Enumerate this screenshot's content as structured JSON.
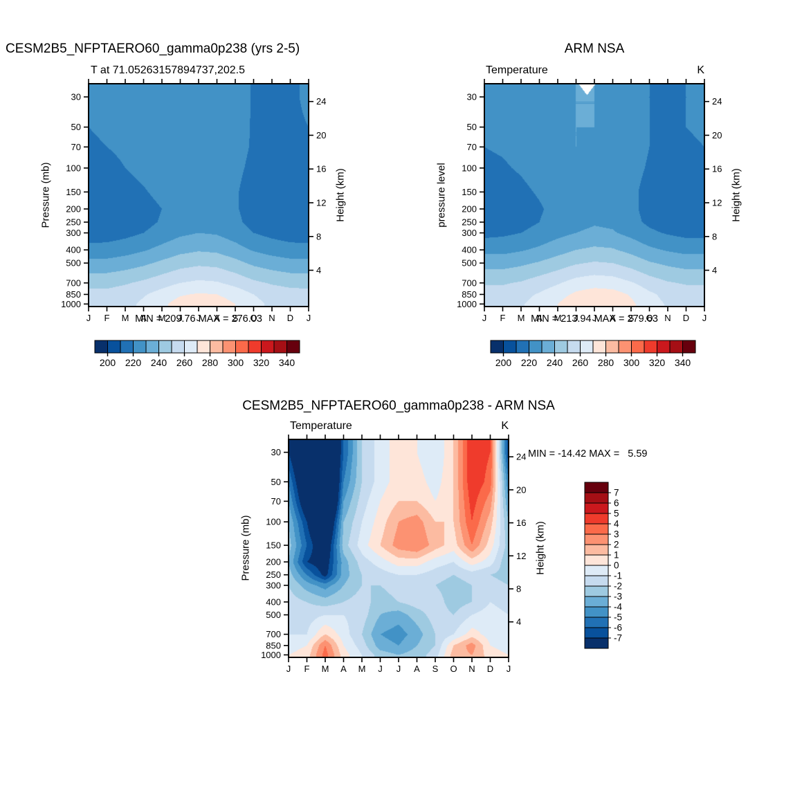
{
  "page": {
    "background": "#ffffff"
  },
  "months": [
    "J",
    "F",
    "M",
    "A",
    "M",
    "J",
    "J",
    "A",
    "S",
    "O",
    "N",
    "D",
    "J"
  ],
  "pressure_ticks": [
    "30",
    "50",
    "70",
    "100",
    "150",
    "200",
    "250",
    "300",
    "400",
    "500",
    "700",
    "850",
    "1000"
  ],
  "height_ticks": [
    "24",
    "20",
    "16",
    "12",
    "8",
    "4"
  ],
  "temperature_colorbar": {
    "start_value": 190,
    "step": 10,
    "labels": [
      "200",
      "220",
      "240",
      "260",
      "280",
      "300",
      "320",
      "340"
    ],
    "colors": [
      "#08306b",
      "#08519c",
      "#2171b5",
      "#4292c6",
      "#6baed6",
      "#9ecae1",
      "#c6dbef",
      "#deebf7",
      "#fee5d9",
      "#fcbba1",
      "#fc9272",
      "#fb6a4a",
      "#ef3b2c",
      "#cb181d",
      "#a50f15",
      "#67000d"
    ]
  },
  "difference_colorbar": {
    "labels_top_to_bottom": [
      "7",
      "6",
      "5",
      "4",
      "3",
      "2",
      "1",
      "0",
      "-1",
      "-2",
      "-3",
      "-4",
      "-5",
      "-6",
      "-7"
    ],
    "colors_neg_to_pos": [
      "#08306b",
      "#08519c",
      "#2171b5",
      "#4292c6",
      "#6baed6",
      "#9ecae1",
      "#c6dbef",
      "#deebf7",
      "#fee5d9",
      "#fcbba1",
      "#fc9272",
      "#fb6a4a",
      "#ef3b2c",
      "#cb181d",
      "#a50f15",
      "#67000d"
    ]
  },
  "panels": [
    {
      "id": "model",
      "title": "CESM2B5_NFPTAERO60_gamma0p238 (yrs 2-5)",
      "subtitle_left": "T at 71.05263157894737,202.5",
      "subtitle_right": "",
      "ylabel": "Pressure (mb)",
      "ylabel_right": "Height (km)",
      "stats": "MIN = 209.76 MAX = 276.03",
      "scale": "temperature"
    },
    {
      "id": "obs",
      "title": "ARM NSA",
      "subtitle_left": "Temperature",
      "subtitle_right": "K",
      "ylabel": "pressure level",
      "ylabel_right": "Height (km)",
      "stats": "MIN = 213.94 MAX = 279.63",
      "scale": "temperature"
    },
    {
      "id": "diff",
      "title": "CESM2B5_NFPTAERO60_gamma0p238 - ARM NSA",
      "subtitle_left": "Temperature",
      "subtitle_right": "K",
      "ylabel": "Pressure (mb)",
      "ylabel_right": "Height (km)",
      "stats": "MIN = -14.42 MAX =   5.59",
      "scale": "difference"
    }
  ],
  "chart_data": [
    {
      "type": "heatmap",
      "panel": "model",
      "title": "CESM2B5_NFPTAERO60_gamma0p238 (yrs 2-5)",
      "subtitle": "T at 71.05263157894737,202.5",
      "units": "K",
      "xlabel": "month",
      "ylabel": "Pressure (mb)",
      "ylabel_right": "Height (km)",
      "min": 209.76,
      "max": 276.03,
      "contour_interval": 10,
      "level_range": [
        190,
        350
      ],
      "x_months": [
        "J",
        "F",
        "M",
        "A",
        "M",
        "J",
        "J",
        "A",
        "S",
        "O",
        "N",
        "D",
        "J"
      ],
      "y_pressures_mb": [
        30,
        50,
        70,
        100,
        150,
        200,
        250,
        300,
        400,
        500,
        700,
        850,
        1000
      ],
      "values_K": [
        [
          221,
          222,
          224,
          226,
          228,
          229,
          229,
          228,
          225,
          219,
          218,
          219,
          221
        ],
        [
          220,
          221,
          223,
          226,
          228,
          229,
          229,
          228,
          224,
          219,
          218,
          219,
          220
        ],
        [
          219,
          220,
          222,
          225,
          228,
          229,
          228,
          227,
          223,
          219,
          218,
          218,
          219
        ],
        [
          216,
          217,
          220,
          223,
          226,
          228,
          227,
          226,
          222,
          218,
          216,
          216,
          216
        ],
        [
          212,
          213,
          216,
          219,
          223,
          226,
          226,
          225,
          221,
          216,
          214,
          213,
          212
        ],
        [
          210,
          210,
          212,
          216,
          220,
          224,
          225,
          224,
          221,
          216,
          213,
          211,
          210
        ],
        [
          211,
          211,
          213,
          217,
          221,
          225,
          227,
          226,
          222,
          217,
          214,
          212,
          211
        ],
        [
          214,
          215,
          217,
          220,
          224,
          228,
          230,
          229,
          225,
          220,
          217,
          215,
          214
        ],
        [
          224,
          224,
          226,
          229,
          233,
          237,
          239,
          238,
          234,
          229,
          226,
          224,
          224
        ],
        [
          233,
          233,
          235,
          238,
          242,
          246,
          248,
          247,
          243,
          238,
          235,
          233,
          233
        ],
        [
          247,
          247,
          249,
          252,
          256,
          260,
          262,
          261,
          257,
          252,
          249,
          247,
          247
        ],
        [
          253,
          253,
          255,
          259,
          264,
          269,
          271,
          270,
          266,
          260,
          256,
          254,
          253
        ],
        [
          255,
          255,
          257,
          262,
          268,
          274,
          276,
          275,
          270,
          263,
          258,
          256,
          255
        ]
      ]
    },
    {
      "type": "heatmap",
      "panel": "obs",
      "title": "ARM NSA",
      "subtitle": "Temperature",
      "units": "K",
      "xlabel": "month",
      "ylabel": "pressure level",
      "ylabel_right": "Height (km)",
      "min": 213.94,
      "max": 279.63,
      "contour_interval": 10,
      "level_range": [
        190,
        350
      ],
      "x_months": [
        "J",
        "F",
        "M",
        "A",
        "M",
        "J",
        "J",
        "A",
        "S",
        "O",
        "N",
        "D",
        "J"
      ],
      "y_pressures_mb": [
        30,
        50,
        70,
        100,
        150,
        200,
        250,
        300,
        400,
        500,
        700,
        850,
        1000
      ],
      "data_gap": {
        "month_center": 5.6,
        "month_halfwidth": 0.45,
        "depth_fraction": 0.05
      },
      "values_K": [
        [
          222,
          223,
          225,
          227,
          229,
          230,
          230,
          229,
          226,
          220,
          218,
          220,
          222
        ],
        [
          221,
          222,
          224,
          227,
          229,
          230,
          230,
          229,
          225,
          220,
          218,
          220,
          221
        ],
        [
          220,
          221,
          223,
          226,
          229,
          230,
          229,
          228,
          224,
          220,
          218,
          219,
          220
        ],
        [
          218,
          219,
          221,
          224,
          227,
          229,
          228,
          227,
          223,
          219,
          217,
          217,
          218
        ],
        [
          215,
          216,
          218,
          221,
          225,
          228,
          228,
          227,
          222,
          217,
          215,
          214,
          215
        ],
        [
          214,
          214,
          216,
          219,
          223,
          226,
          227,
          226,
          222,
          217,
          215,
          214,
          214
        ],
        [
          215,
          215,
          217,
          220,
          224,
          227,
          229,
          228,
          223,
          218,
          215,
          214,
          215
        ],
        [
          217,
          218,
          220,
          223,
          227,
          230,
          232,
          231,
          227,
          222,
          219,
          217,
          217
        ],
        [
          227,
          227,
          229,
          232,
          236,
          240,
          242,
          241,
          237,
          232,
          229,
          227,
          227
        ],
        [
          236,
          236,
          238,
          241,
          245,
          249,
          251,
          250,
          246,
          241,
          238,
          236,
          236
        ],
        [
          249,
          249,
          251,
          255,
          259,
          264,
          266,
          265,
          261,
          255,
          251,
          249,
          249
        ],
        [
          254,
          254,
          257,
          261,
          266,
          272,
          275,
          274,
          269,
          262,
          257,
          255,
          254
        ],
        [
          256,
          256,
          259,
          264,
          270,
          277,
          279,
          278,
          272,
          264,
          259,
          257,
          256
        ]
      ]
    },
    {
      "type": "heatmap",
      "panel": "diff",
      "title": "CESM2B5_NFPTAERO60_gamma0p238 - ARM NSA",
      "subtitle": "Temperature",
      "units": "K",
      "xlabel": "month",
      "ylabel": "Pressure (mb)",
      "ylabel_right": "Height (km)",
      "min": -14.42,
      "max": 5.59,
      "contour_interval": 1,
      "level_range": [
        -8,
        8
      ],
      "x_months": [
        "J",
        "F",
        "M",
        "A",
        "M",
        "J",
        "J",
        "A",
        "S",
        "O",
        "N",
        "D",
        "J"
      ],
      "y_pressures_mb": [
        30,
        50,
        70,
        100,
        150,
        200,
        250,
        300,
        400,
        500,
        700,
        850,
        1000
      ],
      "values_K": [
        [
          -7,
          -11,
          -13,
          -6,
          -2,
          -0.5,
          0.5,
          0,
          -1,
          1,
          5,
          4,
          -7
        ],
        [
          -5,
          -10,
          -14,
          -5,
          -2,
          -0.5,
          0.5,
          0.5,
          -0.5,
          1,
          5,
          3.5,
          -5
        ],
        [
          -4,
          -9,
          -14,
          -4,
          -1.5,
          0,
          1,
          1,
          0,
          1,
          4.5,
          2.5,
          -4
        ],
        [
          -3,
          -7,
          -11,
          -3,
          -1,
          0.5,
          2,
          2.5,
          1,
          1,
          4,
          1.5,
          -3
        ],
        [
          -2.5,
          -6,
          -9,
          -2.5,
          -0.5,
          1,
          2.5,
          3,
          1.5,
          0.5,
          3,
          0.5,
          -2.5
        ],
        [
          -3,
          -7,
          -8,
          -3.5,
          -1.5,
          -0.5,
          0.5,
          0.5,
          -0.5,
          -1,
          0.5,
          -0.5,
          -3
        ],
        [
          -2.5,
          -5,
          -7.5,
          -3.5,
          -2,
          -1.5,
          -1,
          -1,
          -1.5,
          -2,
          -1.5,
          -2,
          -2.5
        ],
        [
          -2,
          -3.5,
          -4.5,
          -3,
          -2,
          -2,
          -1.5,
          -1.5,
          -2,
          -2.5,
          -2,
          -1.5,
          -2
        ],
        [
          -1.5,
          -2,
          -2.5,
          -2,
          -1.5,
          -2.5,
          -2,
          -1.5,
          -1.5,
          -2.5,
          -2,
          -1,
          -1.5
        ],
        [
          -1,
          -1.5,
          -1,
          -1,
          -1.5,
          -3,
          -3.5,
          -2.5,
          -1.5,
          -2,
          -1,
          -0.5,
          -1
        ],
        [
          -1,
          -1,
          1,
          -0.5,
          -2,
          -4,
          -4.5,
          -3.5,
          -2,
          -1,
          0.5,
          -0.5,
          -1
        ],
        [
          -0.5,
          0,
          3,
          0,
          -1.5,
          -3.5,
          -4,
          -3,
          -2,
          1,
          2.5,
          0,
          -0.5
        ],
        [
          0,
          0.5,
          3.5,
          0.5,
          -1,
          -2.5,
          -3,
          -2.5,
          -1.5,
          1.5,
          2,
          0.5,
          0
        ]
      ]
    }
  ]
}
